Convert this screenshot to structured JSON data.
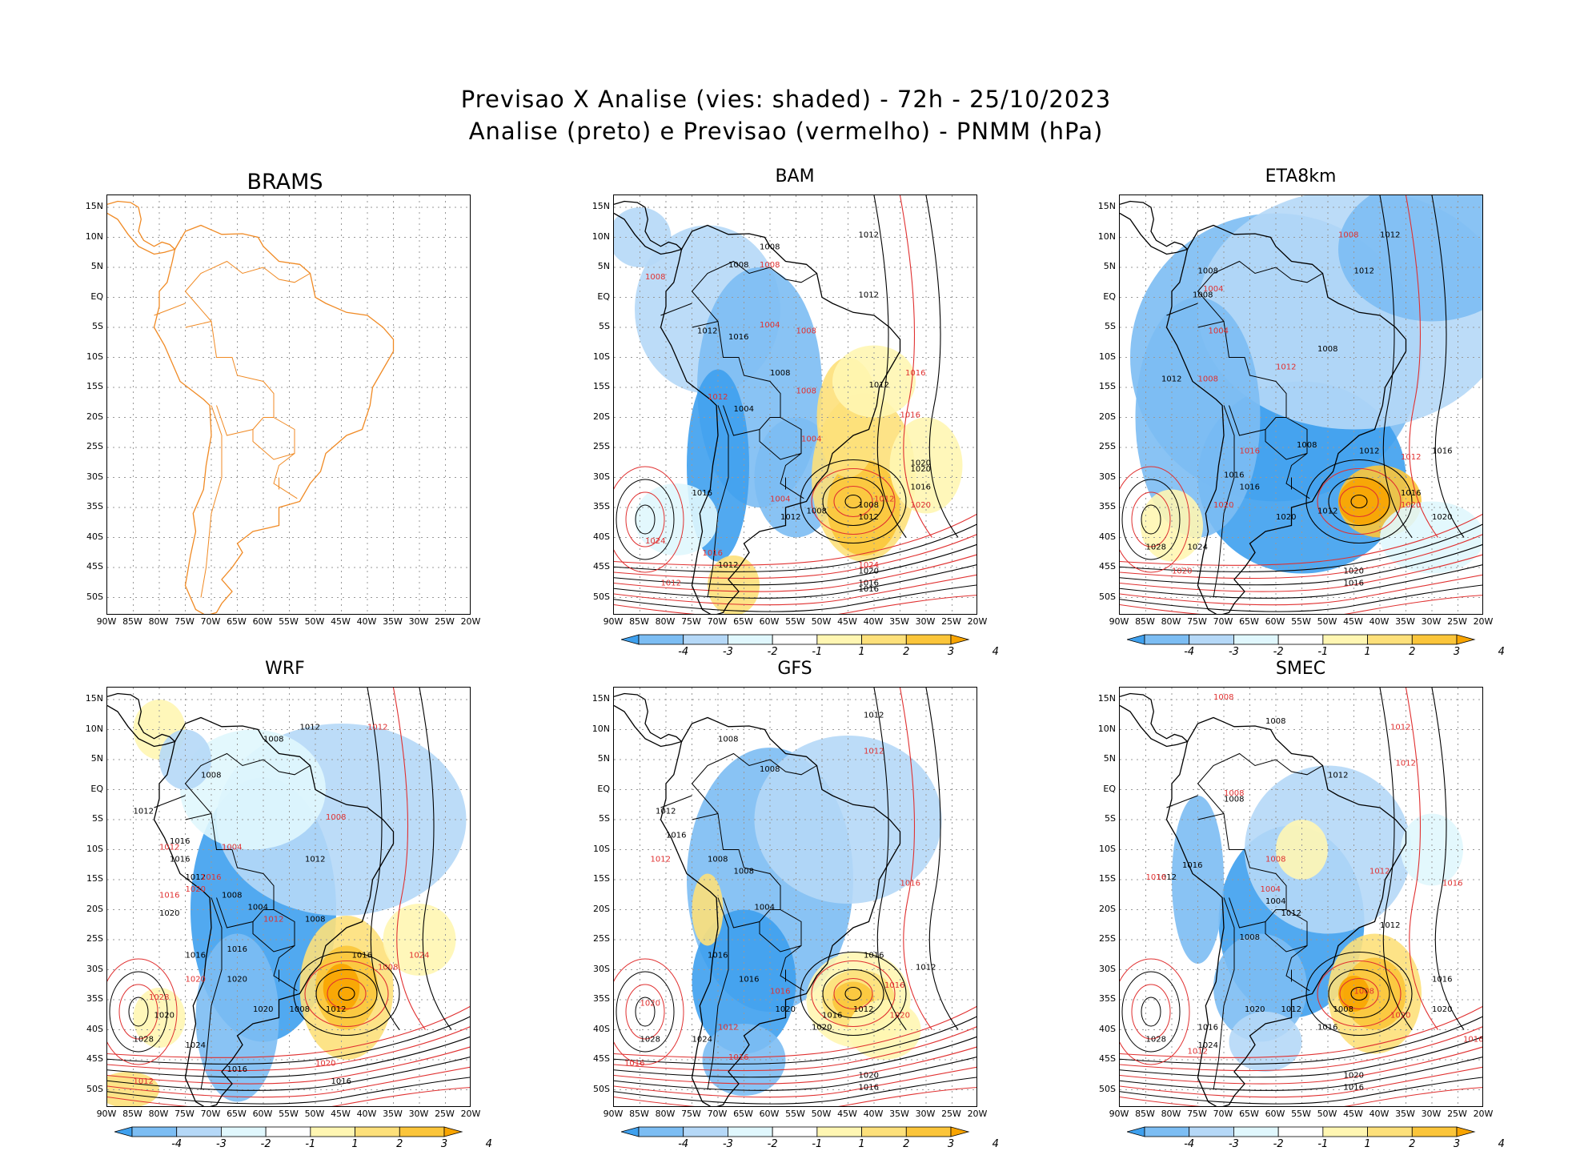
{
  "figure": {
    "title_line1": "Previsao X Analise (vies: shaded) - 72h - 25/10/2023",
    "title_line2": "Analise (preto) e Previsao (vermelho) - PNMM (hPa)"
  },
  "axes": {
    "y_ticks": [
      "15N",
      "10N",
      "5N",
      "EQ",
      "5S",
      "10S",
      "15S",
      "20S",
      "25S",
      "30S",
      "35S",
      "40S",
      "45S",
      "50S"
    ],
    "x_ticks": [
      "90W",
      "85W",
      "80W",
      "75W",
      "70W",
      "65W",
      "60W",
      "55W",
      "50W",
      "45W",
      "40W",
      "35W",
      "30W",
      "25W",
      "20W"
    ]
  },
  "colorbar": {
    "labels": [
      "-4",
      "-3",
      "-2",
      "-1",
      "1",
      "2",
      "3",
      "4"
    ],
    "colors": [
      "#3ea0ee",
      "#7cbdf3",
      "#b5d8f7",
      "#e0f7fd",
      "#ffffff",
      "#fff6b2",
      "#fde07a",
      "#fbc53a",
      "#f8a400"
    ]
  },
  "panels": [
    {
      "id": "brams",
      "title": "BRAMS",
      "shaded": false
    },
    {
      "id": "bam",
      "title": "BAM",
      "shaded": true,
      "black_labels": [
        "1012",
        "1008",
        "1008",
        "1012",
        "1016",
        "1012",
        "1008",
        "1004",
        "1012",
        "1012",
        "1008",
        "1020",
        "1016",
        "1008",
        "1012",
        "1016",
        "1020",
        "1020",
        "1016",
        "1012",
        "1016"
      ],
      "red_labels": [
        "1008",
        "1008",
        "1004",
        "1008",
        "1012",
        "1008",
        "1004",
        "1016",
        "1024",
        "1016",
        "1020",
        "1024",
        "1012",
        "1004",
        "1012",
        "1016"
      ]
    },
    {
      "id": "eta8km",
      "title": "ETA8km",
      "shaded": true,
      "black_labels": [
        "1012",
        "1008",
        "1008",
        "1012",
        "1008",
        "1012",
        "1008",
        "1016",
        "1012",
        "1016",
        "1020",
        "1012",
        "1016",
        "1020",
        "1020",
        "1016",
        "1028",
        "1024",
        "1016"
      ],
      "red_labels": [
        "1008",
        "1004",
        "1004",
        "1012",
        "1008",
        "1016",
        "1020",
        "1020",
        "1012",
        "1020"
      ]
    },
    {
      "id": "wrf",
      "title": "WRF",
      "shaded": true,
      "black_labels": [
        "1012",
        "1008",
        "1008",
        "1012",
        "1016",
        "1016",
        "1020",
        "1008",
        "1004",
        "1012",
        "1012",
        "1008",
        "1016",
        "1020",
        "1016",
        "1012",
        "1016",
        "1020",
        "1028",
        "1024",
        "1016",
        "1008",
        "1020",
        "1016"
      ],
      "red_labels": [
        "1012",
        "1012",
        "1016",
        "1020",
        "1008",
        "1028",
        "1004",
        "1020",
        "1024",
        "1012",
        "1008",
        "1020",
        "1016",
        "1012"
      ]
    },
    {
      "id": "gfs",
      "title": "GFS",
      "shaded": true,
      "black_labels": [
        "1012",
        "1008",
        "1008",
        "1012",
        "1016",
        "1008",
        "1008",
        "1004",
        "1016",
        "1016",
        "1016",
        "1020",
        "1028",
        "1024",
        "1012",
        "1016",
        "1020",
        "1020",
        "1016",
        "1012"
      ],
      "red_labels": [
        "1012",
        "1016",
        "1012",
        "1016",
        "1020",
        "1016",
        "1012",
        "1020",
        "1016",
        "1016"
      ]
    },
    {
      "id": "smec",
      "title": "SMEC",
      "shaded": true,
      "black_labels": [
        "1008",
        "1012",
        "1008",
        "1016",
        "1012",
        "1004",
        "1008",
        "1012",
        "1012",
        "1016",
        "1020",
        "1012",
        "1008",
        "1016",
        "1020",
        "1016",
        "1028",
        "1024",
        "1020",
        "1016"
      ],
      "red_labels": [
        "1008",
        "1012",
        "1012",
        "1008",
        "1008",
        "1016",
        "1004",
        "1012",
        "1020",
        "1008",
        "1016",
        "1016",
        "1012"
      ]
    }
  ]
}
